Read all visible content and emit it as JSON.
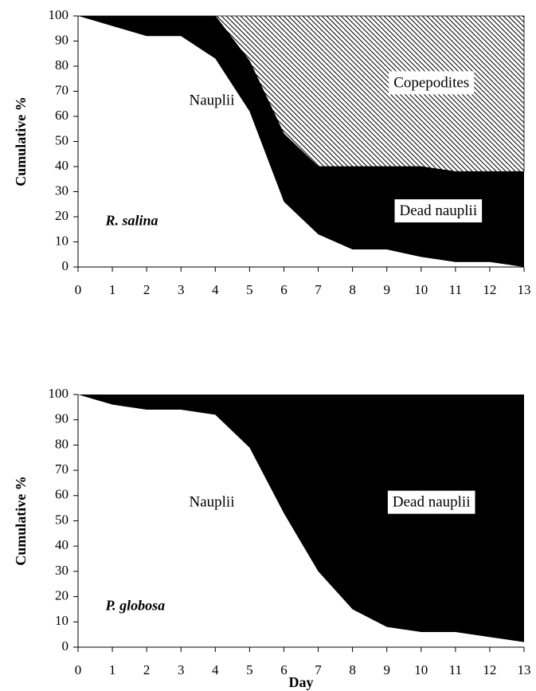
{
  "chart_data": [
    {
      "type": "area",
      "stacked": true,
      "ylabel": "Cumulative %",
      "annotation": "R. salina",
      "x": [
        0,
        1,
        2,
        3,
        4,
        5,
        6,
        7,
        8,
        9,
        10,
        11,
        12,
        13
      ],
      "xlim": [
        0,
        13
      ],
      "xticks": [
        0,
        1,
        2,
        3,
        4,
        5,
        6,
        7,
        8,
        9,
        10,
        11,
        12,
        13
      ],
      "ylim": [
        0,
        100
      ],
      "yticks": [
        0,
        10,
        20,
        30,
        40,
        50,
        60,
        70,
        80,
        90,
        100
      ],
      "series": [
        {
          "name": "Nauplii",
          "color": "#ffffff",
          "values": [
            100,
            96,
            92,
            92,
            83,
            62,
            26,
            13,
            7,
            7,
            4,
            2,
            2,
            0
          ]
        },
        {
          "name": "Dead nauplii",
          "color": "#000000",
          "values": [
            0,
            4,
            8,
            8,
            17,
            20,
            27,
            27,
            33,
            33,
            36,
            36,
            36,
            38
          ]
        },
        {
          "name": "Copepodites",
          "color": "#000000",
          "hatch": true,
          "values": [
            0,
            0,
            0,
            0,
            0,
            18,
            47,
            60,
            60,
            60,
            60,
            62,
            62,
            62
          ]
        }
      ]
    },
    {
      "type": "area",
      "stacked": true,
      "ylabel": "Cumulative %",
      "annotation": "P. globosa",
      "xlabel": "Day",
      "x": [
        0,
        1,
        2,
        3,
        4,
        5,
        6,
        7,
        8,
        9,
        10,
        11,
        12,
        13
      ],
      "xlim": [
        0,
        13
      ],
      "xticks": [
        0,
        1,
        2,
        3,
        4,
        5,
        6,
        7,
        8,
        9,
        10,
        11,
        12,
        13
      ],
      "ylim": [
        0,
        100
      ],
      "yticks": [
        0,
        10,
        20,
        30,
        40,
        50,
        60,
        70,
        80,
        90,
        100
      ],
      "series": [
        {
          "name": "Nauplii",
          "color": "#ffffff",
          "values": [
            100,
            96,
            94,
            94,
            92,
            79,
            53,
            30,
            15,
            8,
            6,
            6,
            4,
            2
          ]
        },
        {
          "name": "Dead nauplii",
          "color": "#000000",
          "values": [
            0,
            4,
            6,
            6,
            8,
            21,
            47,
            70,
            85,
            92,
            94,
            94,
            96,
            98
          ]
        }
      ]
    }
  ]
}
